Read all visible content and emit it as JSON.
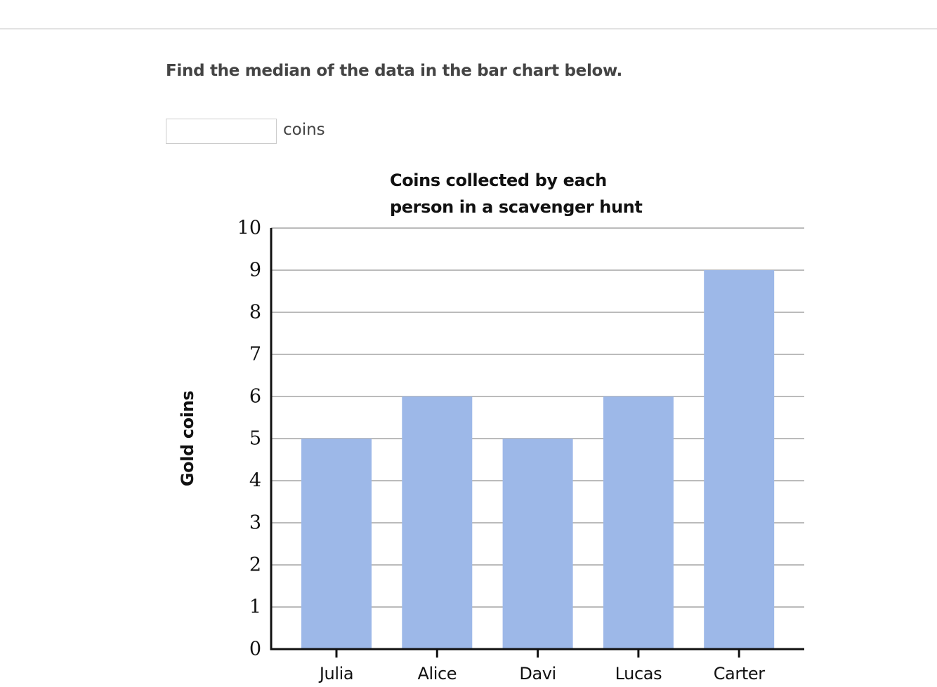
{
  "question": "Find the median of the data in the bar chart below.",
  "answer_unit": "coins",
  "chart_data": {
    "type": "bar",
    "title": "Coins collected by each person in a scavenger hunt",
    "y_label": "Gold coins",
    "categories": [
      "Julia",
      "Alice",
      "Davi",
      "Lucas",
      "Carter"
    ],
    "values": [
      5,
      6,
      5,
      6,
      9
    ],
    "color": "#9db8e8",
    "ylim": [
      0,
      10
    ],
    "yticks": [
      0,
      1,
      2,
      3,
      4,
      5,
      6,
      7,
      8,
      9,
      10
    ],
    "grid": true
  }
}
